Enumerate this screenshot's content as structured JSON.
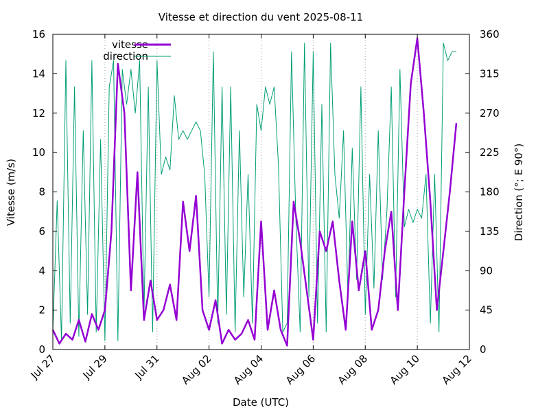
{
  "chart_data": {
    "type": "line",
    "title": "Vitesse et direction du vent 2025-08-11",
    "xlabel": "Date (UTC)",
    "ylabel": "Vitesse (m/s)",
    "y2label": "Direction (°; E 90°)",
    "x_range": [
      "2025-07-27",
      "2025-08-12"
    ],
    "x_tick_labels": [
      "Jul 27",
      "Jul 29",
      "Jul 31",
      "Aug 02",
      "Aug 04",
      "Aug 06",
      "Aug 08",
      "Aug 10",
      "Aug 12"
    ],
    "y_range": [
      0,
      16
    ],
    "y_ticks": [
      0,
      2,
      4,
      6,
      8,
      10,
      12,
      14,
      16
    ],
    "y2_range": [
      0,
      360
    ],
    "y2_ticks": [
      0,
      45,
      90,
      135,
      180,
      225,
      270,
      315,
      360
    ],
    "grid": "vertical dotted lines at x ticks",
    "legend": "top-left",
    "series": [
      {
        "name": "vitesse",
        "axis": "left",
        "color": "#9400D3",
        "points": [
          [
            "2025-07-27 00:00",
            1.0
          ],
          [
            "2025-07-27 06:00",
            0.3
          ],
          [
            "2025-07-27 12:00",
            0.8
          ],
          [
            "2025-07-27 18:00",
            0.5
          ],
          [
            "2025-07-28 00:00",
            1.5
          ],
          [
            "2025-07-28 06:00",
            0.4
          ],
          [
            "2025-07-28 12:00",
            1.8
          ],
          [
            "2025-07-28 18:00",
            1.0
          ],
          [
            "2025-07-29 00:00",
            2.0
          ],
          [
            "2025-07-29 06:00",
            6.0
          ],
          [
            "2025-07-29 12:00",
            14.5
          ],
          [
            "2025-07-29 18:00",
            12.0
          ],
          [
            "2025-07-30 00:00",
            3.0
          ],
          [
            "2025-07-30 06:00",
            9.0
          ],
          [
            "2025-07-30 12:00",
            1.5
          ],
          [
            "2025-07-30 18:00",
            3.5
          ],
          [
            "2025-07-31 00:00",
            1.5
          ],
          [
            "2025-07-31 06:00",
            2.0
          ],
          [
            "2025-07-31 12:00",
            3.3
          ],
          [
            "2025-07-31 18:00",
            1.5
          ],
          [
            "2025-08-01 00:00",
            7.5
          ],
          [
            "2025-08-01 06:00",
            5.0
          ],
          [
            "2025-08-01 12:00",
            7.8
          ],
          [
            "2025-08-01 18:00",
            2.0
          ],
          [
            "2025-08-02 00:00",
            1.0
          ],
          [
            "2025-08-02 06:00",
            2.5
          ],
          [
            "2025-08-02 12:00",
            0.3
          ],
          [
            "2025-08-02 18:00",
            1.0
          ],
          [
            "2025-08-03 00:00",
            0.5
          ],
          [
            "2025-08-03 06:00",
            0.8
          ],
          [
            "2025-08-03 12:00",
            1.5
          ],
          [
            "2025-08-03 18:00",
            0.5
          ],
          [
            "2025-08-04 00:00",
            6.5
          ],
          [
            "2025-08-04 06:00",
            1.0
          ],
          [
            "2025-08-04 12:00",
            3.0
          ],
          [
            "2025-08-04 18:00",
            1.0
          ],
          [
            "2025-08-05 00:00",
            0.2
          ],
          [
            "2025-08-05 06:00",
            7.5
          ],
          [
            "2025-08-05 12:00",
            5.5
          ],
          [
            "2025-08-05 18:00",
            3.0
          ],
          [
            "2025-08-06 00:00",
            0.5
          ],
          [
            "2025-08-06 06:00",
            6.0
          ],
          [
            "2025-08-06 12:00",
            5.0
          ],
          [
            "2025-08-06 18:00",
            6.5
          ],
          [
            "2025-08-07 00:00",
            3.5
          ],
          [
            "2025-08-07 06:00",
            1.0
          ],
          [
            "2025-08-07 12:00",
            6.5
          ],
          [
            "2025-08-07 18:00",
            3.0
          ],
          [
            "2025-08-08 00:00",
            5.0
          ],
          [
            "2025-08-08 06:00",
            1.0
          ],
          [
            "2025-08-08 12:00",
            2.0
          ],
          [
            "2025-08-08 18:00",
            5.0
          ],
          [
            "2025-08-09 00:00",
            7.0
          ],
          [
            "2025-08-09 06:00",
            2.0
          ],
          [
            "2025-08-09 12:00",
            8.0
          ],
          [
            "2025-08-09 18:00",
            13.5
          ],
          [
            "2025-08-10 00:00",
            15.8
          ],
          [
            "2025-08-10 06:00",
            12.0
          ],
          [
            "2025-08-10 12:00",
            7.5
          ],
          [
            "2025-08-10 18:00",
            2.0
          ],
          [
            "2025-08-11 00:00",
            5.0
          ],
          [
            "2025-08-11 06:00",
            8.0
          ],
          [
            "2025-08-11 12:00",
            11.5
          ]
        ]
      },
      {
        "name": "direction",
        "axis": "right",
        "color": "#009E73",
        "points": [
          [
            "2025-07-27 00:00",
            20
          ],
          [
            "2025-07-27 04:00",
            170
          ],
          [
            "2025-07-27 08:00",
            10
          ],
          [
            "2025-07-27 12:00",
            330
          ],
          [
            "2025-07-27 16:00",
            30
          ],
          [
            "2025-07-27 20:00",
            300
          ],
          [
            "2025-07-28 00:00",
            15
          ],
          [
            "2025-07-28 04:00",
            250
          ],
          [
            "2025-07-28 08:00",
            40
          ],
          [
            "2025-07-28 12:00",
            330
          ],
          [
            "2025-07-28 16:00",
            20
          ],
          [
            "2025-07-28 20:00",
            240
          ],
          [
            "2025-07-29 00:00",
            10
          ],
          [
            "2025-07-29 04:00",
            300
          ],
          [
            "2025-07-29 08:00",
            330
          ],
          [
            "2025-07-29 12:00",
            10
          ],
          [
            "2025-07-29 16:00",
            320
          ],
          [
            "2025-07-29 20:00",
            280
          ],
          [
            "2025-07-30 00:00",
            320
          ],
          [
            "2025-07-30 04:00",
            270
          ],
          [
            "2025-07-30 08:00",
            330
          ],
          [
            "2025-07-30 12:00",
            40
          ],
          [
            "2025-07-30 16:00",
            300
          ],
          [
            "2025-07-30 20:00",
            20
          ],
          [
            "2025-07-31 00:00",
            330
          ],
          [
            "2025-07-31 04:00",
            200
          ],
          [
            "2025-07-31 08:00",
            220
          ],
          [
            "2025-07-31 12:00",
            205
          ],
          [
            "2025-07-31 16:00",
            290
          ],
          [
            "2025-07-31 20:00",
            240
          ],
          [
            "2025-08-01 00:00",
            250
          ],
          [
            "2025-08-01 04:00",
            240
          ],
          [
            "2025-08-01 08:00",
            250
          ],
          [
            "2025-08-01 12:00",
            260
          ],
          [
            "2025-08-01 16:00",
            250
          ],
          [
            "2025-08-01 20:00",
            200
          ],
          [
            "2025-08-02 00:00",
            60
          ],
          [
            "2025-08-02 04:00",
            340
          ],
          [
            "2025-08-02 08:00",
            30
          ],
          [
            "2025-08-02 12:00",
            300
          ],
          [
            "2025-08-02 16:00",
            40
          ],
          [
            "2025-08-02 20:00",
            300
          ],
          [
            "2025-08-03 00:00",
            20
          ],
          [
            "2025-08-03 04:00",
            250
          ],
          [
            "2025-08-03 08:00",
            60
          ],
          [
            "2025-08-03 12:00",
            200
          ],
          [
            "2025-08-03 16:00",
            30
          ],
          [
            "2025-08-03 20:00",
            280
          ],
          [
            "2025-08-04 00:00",
            250
          ],
          [
            "2025-08-04 04:00",
            300
          ],
          [
            "2025-08-04 08:00",
            280
          ],
          [
            "2025-08-04 12:00",
            300
          ],
          [
            "2025-08-04 16:00",
            210
          ],
          [
            "2025-08-04 20:00",
            20
          ],
          [
            "2025-08-05 00:00",
            30
          ],
          [
            "2025-08-05 04:00",
            340
          ],
          [
            "2025-08-05 08:00",
            150
          ],
          [
            "2025-08-05 12:00",
            20
          ],
          [
            "2025-08-05 16:00",
            350
          ],
          [
            "2025-08-05 20:00",
            60
          ],
          [
            "2025-08-06 00:00",
            340
          ],
          [
            "2025-08-06 04:00",
            30
          ],
          [
            "2025-08-06 08:00",
            280
          ],
          [
            "2025-08-06 12:00",
            20
          ],
          [
            "2025-08-06 16:00",
            350
          ],
          [
            "2025-08-06 20:00",
            200
          ],
          [
            "2025-08-07 00:00",
            150
          ],
          [
            "2025-08-07 04:00",
            250
          ],
          [
            "2025-08-07 08:00",
            60
          ],
          [
            "2025-08-07 12:00",
            230
          ],
          [
            "2025-08-07 16:00",
            80
          ],
          [
            "2025-08-07 20:00",
            300
          ],
          [
            "2025-08-08 00:00",
            40
          ],
          [
            "2025-08-08 04:00",
            200
          ],
          [
            "2025-08-08 08:00",
            70
          ],
          [
            "2025-08-08 12:00",
            250
          ],
          [
            "2025-08-08 16:00",
            80
          ],
          [
            "2025-08-08 20:00",
            160
          ],
          [
            "2025-08-09 00:00",
            300
          ],
          [
            "2025-08-09 04:00",
            60
          ],
          [
            "2025-08-09 08:00",
            320
          ],
          [
            "2025-08-09 12:00",
            140
          ],
          [
            "2025-08-09 16:00",
            160
          ],
          [
            "2025-08-09 20:00",
            145
          ],
          [
            "2025-08-10 00:00",
            160
          ],
          [
            "2025-08-10 04:00",
            150
          ],
          [
            "2025-08-10 08:00",
            200
          ],
          [
            "2025-08-10 12:00",
            30
          ],
          [
            "2025-08-10 16:00",
            200
          ],
          [
            "2025-08-10 20:00",
            20
          ],
          [
            "2025-08-11 00:00",
            350
          ],
          [
            "2025-08-11 04:00",
            330
          ],
          [
            "2025-08-11 08:00",
            340
          ],
          [
            "2025-08-11 12:00",
            340
          ]
        ]
      }
    ]
  }
}
